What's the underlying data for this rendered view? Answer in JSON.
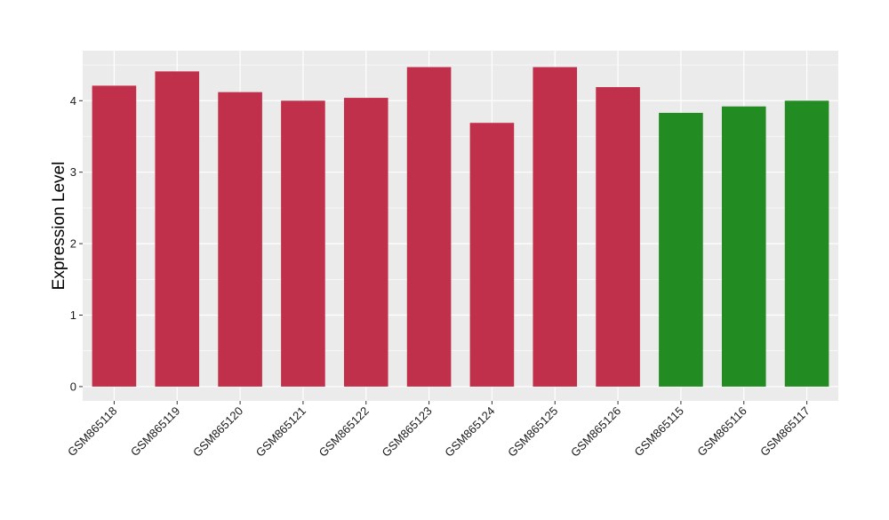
{
  "chart_data": {
    "type": "bar",
    "title": "",
    "xlabel": "",
    "ylabel": "Expression Level",
    "ylim": [
      -0.2,
      4.7
    ],
    "yticks": [
      0,
      1,
      2,
      3,
      4
    ],
    "grid": true,
    "legend": "none",
    "categories": [
      "GSM865118",
      "GSM865119",
      "GSM865120",
      "GSM865121",
      "GSM865122",
      "GSM865123",
      "GSM865124",
      "GSM865125",
      "GSM865126",
      "GSM865115",
      "GSM865116",
      "GSM865117"
    ],
    "values": [
      4.21,
      4.41,
      4.12,
      4.0,
      4.04,
      4.47,
      3.69,
      4.47,
      4.19,
      3.83,
      3.92,
      4.0
    ],
    "bar_colors": [
      "#c0304a",
      "#c0304a",
      "#c0304a",
      "#c0304a",
      "#c0304a",
      "#c0304a",
      "#c0304a",
      "#c0304a",
      "#c0304a",
      "#228b22",
      "#228b22",
      "#228b22"
    ],
    "panel_background": "#ebebeb",
    "grid_color": "#ffffff"
  }
}
